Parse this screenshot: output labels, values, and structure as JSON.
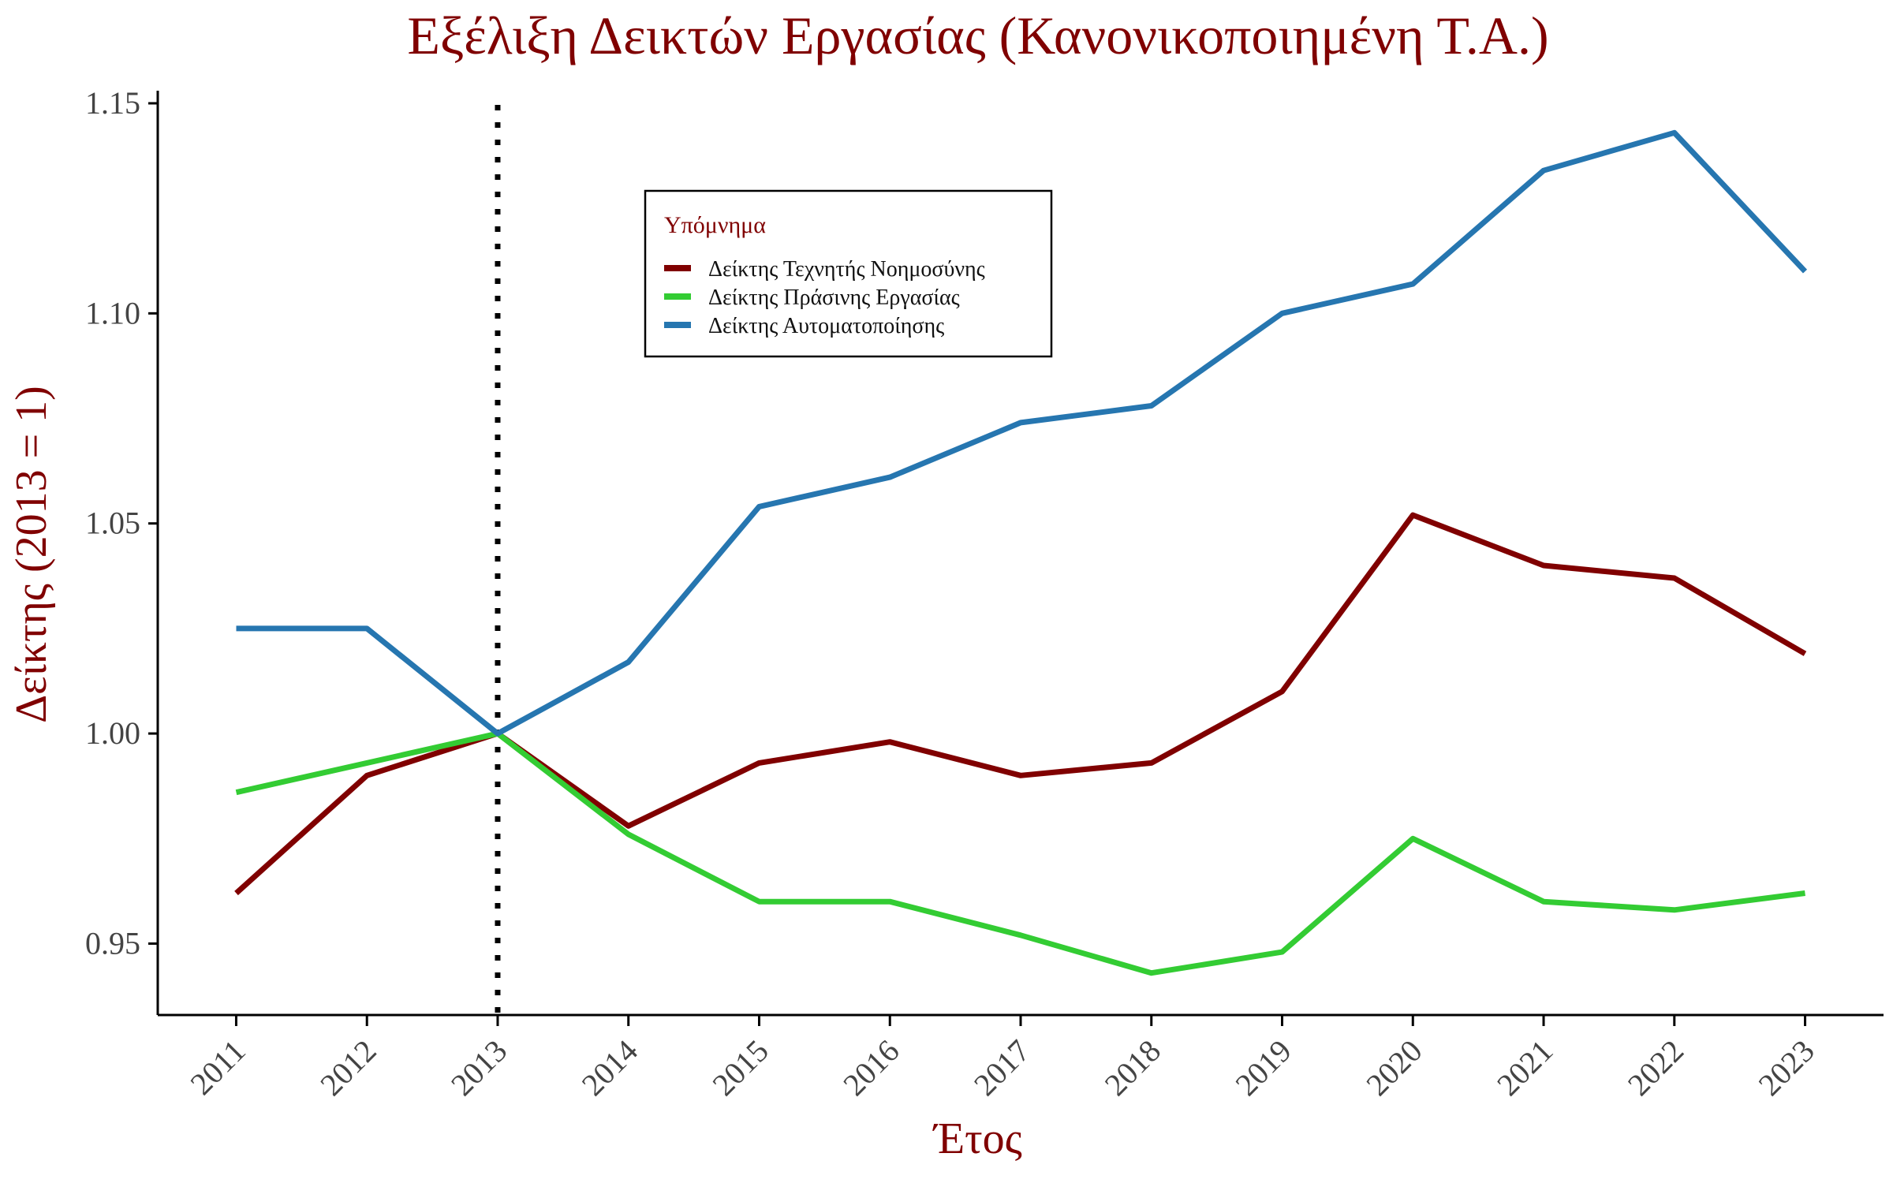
{
  "chart_data": {
    "type": "line",
    "title": "Εξέλιξη Δεικτών Εργασίας (Κανονικοποιημένη Τ.Α.)",
    "xlabel": "Έτος",
    "ylabel": "Δείκτης (2013 = 1)",
    "x": [
      2011,
      2012,
      2013,
      2014,
      2015,
      2016,
      2017,
      2018,
      2019,
      2020,
      2021,
      2022,
      2023
    ],
    "x_tick_labels": [
      "2011",
      "2012",
      "2013",
      "2014",
      "2015",
      "2016",
      "2017",
      "2018",
      "2019",
      "2020",
      "2021",
      "2022",
      "2023"
    ],
    "y_ticks": [
      0.95,
      1.0,
      1.05,
      1.1,
      1.15
    ],
    "y_tick_labels": [
      "0.95",
      "1.00",
      "1.05",
      "1.10",
      "1.15"
    ],
    "ylim": [
      0.933,
      1.153
    ],
    "xlim": [
      2010.4,
      2023.6
    ],
    "reference_line": {
      "x": 2013,
      "style": "dotted",
      "color": "#000000"
    },
    "grid": false,
    "legend": {
      "title": "Υπόμνημα",
      "position": "top-center"
    },
    "series": [
      {
        "name": "Δείκτης Τεχνητής Νοημοσύνης",
        "color": "#800000",
        "values": [
          0.962,
          0.99,
          1.0,
          0.978,
          0.993,
          0.998,
          0.99,
          0.993,
          1.01,
          1.052,
          1.04,
          1.037,
          1.019
        ]
      },
      {
        "name": "Δείκτης Πράσινης Εργασίας",
        "color": "#33CC33",
        "values": [
          0.986,
          0.993,
          1.0,
          0.976,
          0.96,
          0.96,
          0.952,
          0.943,
          0.948,
          0.975,
          0.96,
          0.958,
          0.962
        ]
      },
      {
        "name": "Δείκτης Αυτοματοποίησης",
        "color": "#2676B0",
        "values": [
          1.025,
          1.025,
          1.0,
          1.017,
          1.054,
          1.061,
          1.074,
          1.078,
          1.1,
          1.107,
          1.134,
          1.143,
          1.11
        ]
      }
    ]
  }
}
